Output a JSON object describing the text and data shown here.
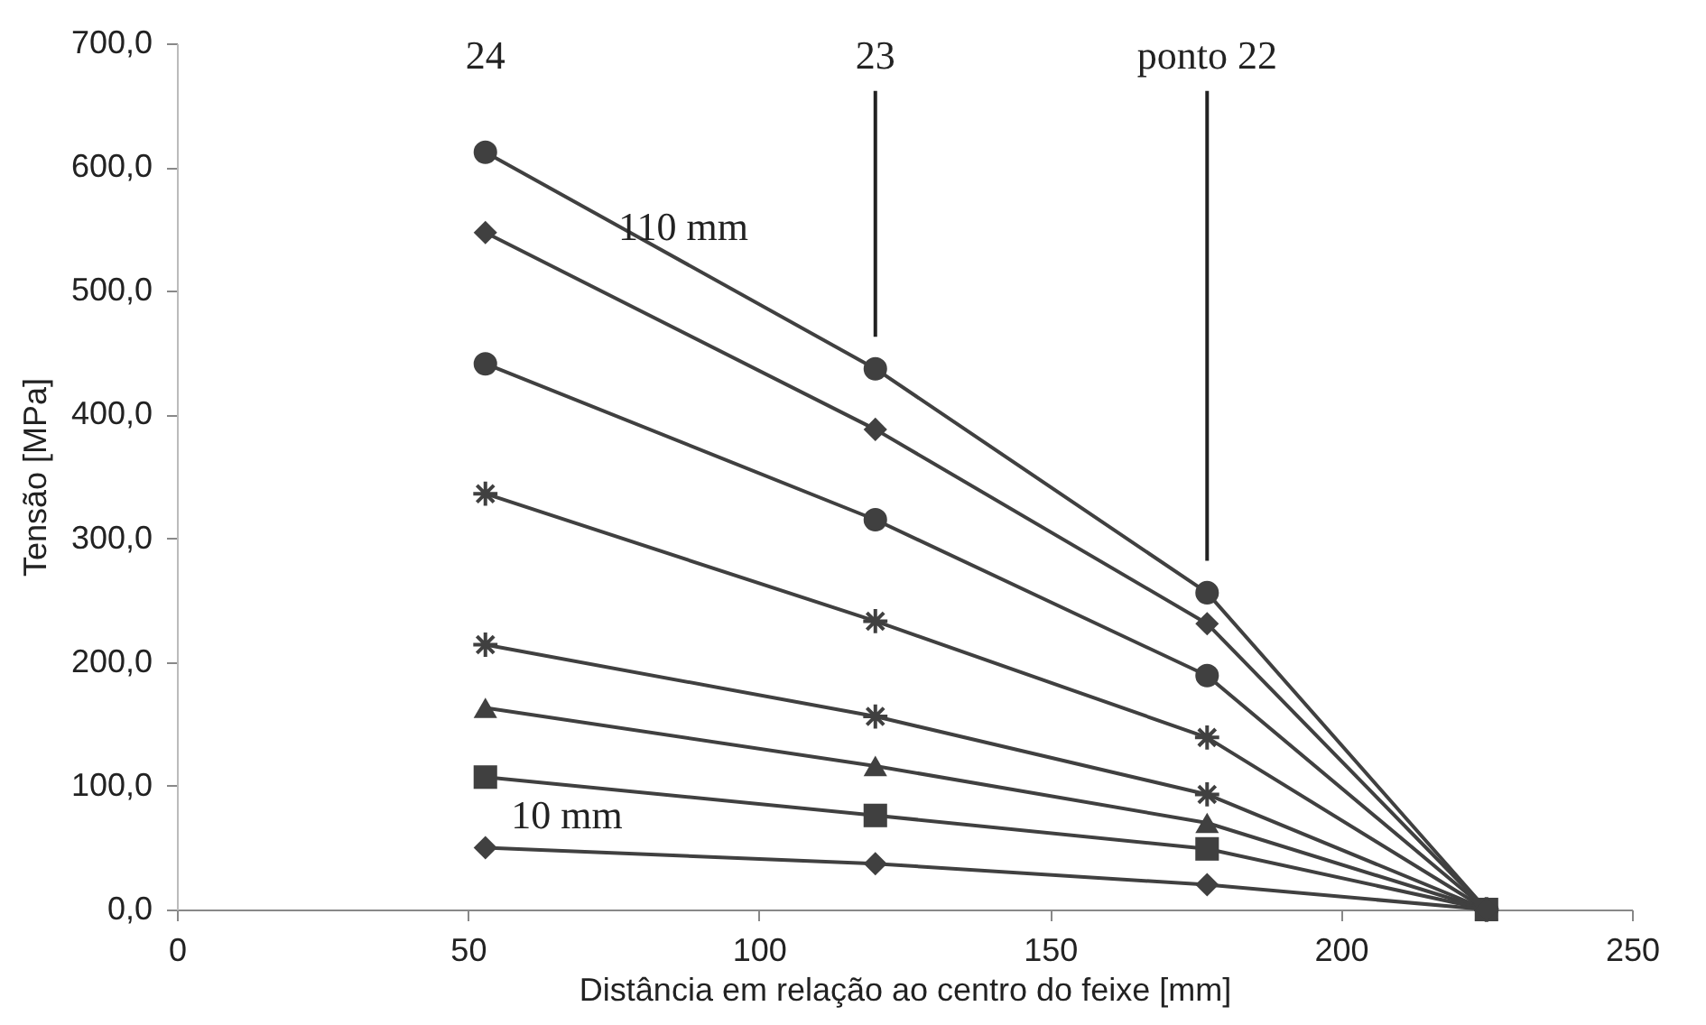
{
  "chart_data": {
    "type": "line",
    "xlabel": "Distância em relação ao centro do feixe [mm]",
    "ylabel": "Tensão [MPa]",
    "xlim": [
      0,
      250
    ],
    "xticks": [
      0,
      50,
      100,
      150,
      200,
      250
    ],
    "ylim": [
      0,
      700
    ],
    "yticks": [
      {
        "value": 0,
        "label": "0,0"
      },
      {
        "value": 100,
        "label": "100,0"
      },
      {
        "value": 200,
        "label": "200,0"
      },
      {
        "value": 300,
        "label": "300,0"
      },
      {
        "value": 400,
        "label": "400,0"
      },
      {
        "value": 500,
        "label": "500,0"
      },
      {
        "value": 600,
        "label": "600,0"
      },
      {
        "value": 700,
        "label": "700,0"
      }
    ],
    "x": [
      53,
      120,
      177,
      225
    ],
    "grid": false,
    "line_style": "solid",
    "series": [
      {
        "color": "#404040",
        "marker": "circle",
        "values": [
          612,
          437,
          256,
          0
        ]
      },
      {
        "color": "#404040",
        "marker": "diamond",
        "values": [
          547,
          388,
          231,
          0
        ]
      },
      {
        "color": "#404040",
        "marker": "circle",
        "values": [
          441,
          315,
          189,
          0
        ]
      },
      {
        "color": "#404040",
        "marker": "cross",
        "values": [
          336,
          233,
          139,
          0
        ]
      },
      {
        "color": "#404040",
        "marker": "cross",
        "values": [
          214,
          156,
          93,
          0
        ]
      },
      {
        "color": "#404040",
        "marker": "triangle",
        "values": [
          163,
          116,
          70,
          0
        ]
      },
      {
        "color": "#404040",
        "marker": "square",
        "values": [
          107,
          76,
          49,
          0
        ]
      },
      {
        "color": "#404040",
        "marker": "diamond",
        "values": [
          50,
          37,
          20,
          0
        ]
      }
    ],
    "annotations": [
      {
        "text": "24",
        "x": 53,
        "y": 612
      },
      {
        "text": "23",
        "x": 120
      },
      {
        "text": "ponto 22",
        "x": 177
      },
      {
        "text": "110 mm",
        "x": 87,
        "y": 522
      },
      {
        "text": "10 mm",
        "x": 67,
        "y": 47
      }
    ]
  }
}
